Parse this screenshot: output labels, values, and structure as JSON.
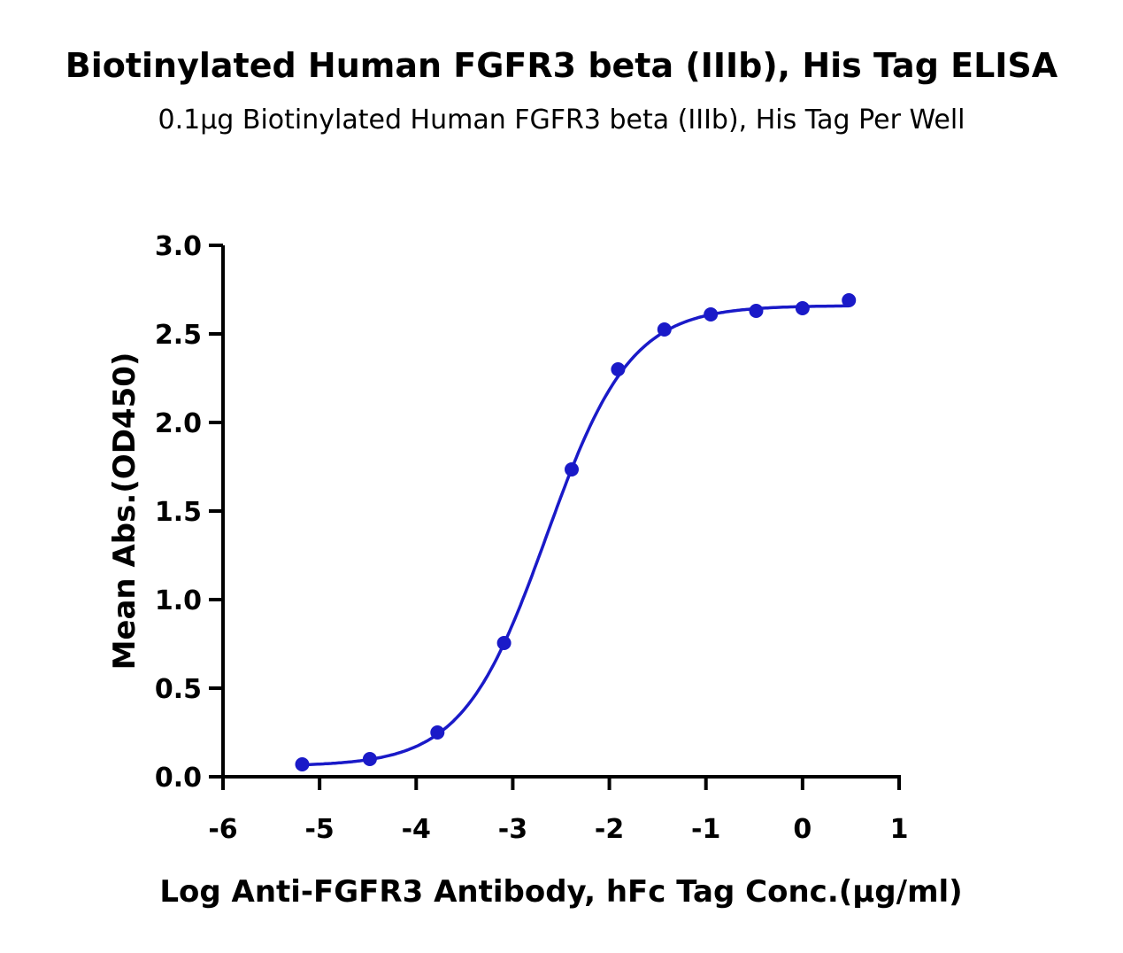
{
  "chart_data": {
    "type": "scatter",
    "title": "Biotinylated Human FGFR3 beta (IIIb), His Tag ELISA",
    "subtitle": "0.1µg Biotinylated Human FGFR3 beta (IIIb), His Tag Per Well",
    "xlabel": "Log Anti-FGFR3 Antibody, hFc Tag Conc.(µg/ml)",
    "ylabel": "Mean Abs.(OD450)",
    "xlim": [
      -6,
      1
    ],
    "ylim": [
      0,
      3.0
    ],
    "xticks": [
      "-6",
      "-5",
      "-4",
      "-3",
      "-2",
      "-1",
      "0",
      "1"
    ],
    "yticks": [
      "0.0",
      "0.5",
      "1.0",
      "1.5",
      "2.0",
      "2.5",
      "3.0"
    ],
    "grid": false,
    "fit_curve": "sigmoidal 4PL",
    "color": "#1a1ac8",
    "series": [
      {
        "x": [
          -5.18,
          -4.48,
          -3.78,
          -3.09,
          -2.39,
          -1.91,
          -1.43,
          -0.95,
          -0.48,
          0.0,
          0.48
        ],
        "y": [
          0.07,
          0.1,
          0.25,
          0.755,
          1.735,
          2.3,
          2.525,
          2.61,
          2.63,
          2.645,
          2.69
        ]
      }
    ]
  }
}
